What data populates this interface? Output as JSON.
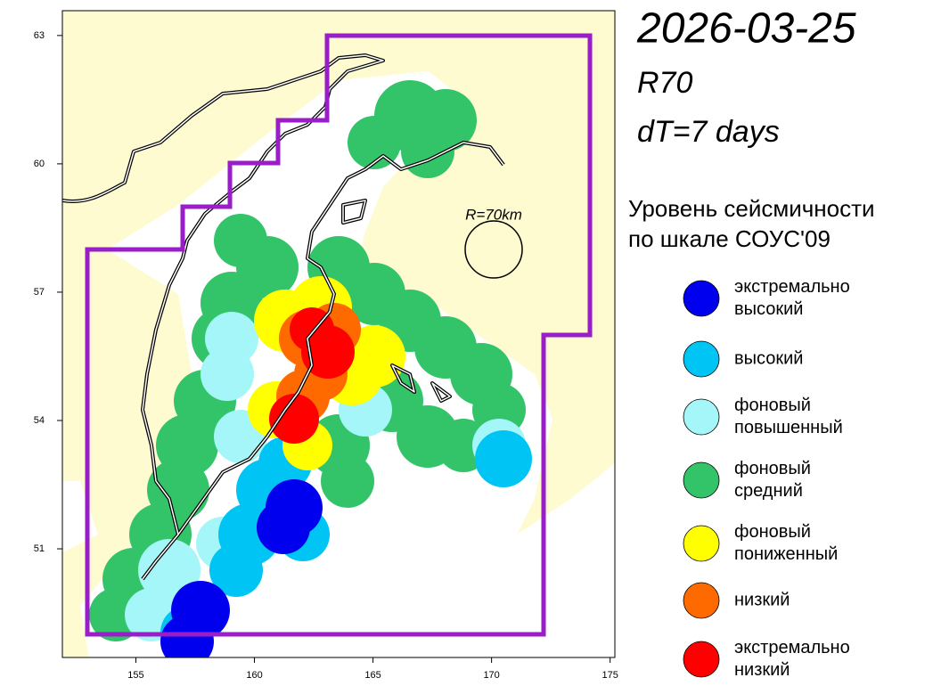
{
  "header": {
    "date": "2026-03-25",
    "radius": "R70",
    "window": "dT=7 days"
  },
  "map": {
    "xlim": [
      151.9,
      175.2
    ],
    "ylim": [
      48.46,
      63.58
    ],
    "xticks": [
      155,
      160,
      165,
      170,
      175
    ],
    "yticks": [
      51,
      54,
      57,
      60,
      63
    ],
    "circle_label": "R=70km"
  },
  "legend": {
    "title": [
      "Уровень сейсмичности",
      "по шкале СОУС'09"
    ],
    "items": [
      {
        "label": [
          "экстремально",
          "высокий"
        ],
        "color": "#0000ee"
      },
      {
        "label": [
          "высокий"
        ],
        "color": "#00c4f4"
      },
      {
        "label": [
          "фоновый",
          "повышенный"
        ],
        "color": "#a4f6f8"
      },
      {
        "label": [
          "фоновый",
          "средний"
        ],
        "color": "#33c46a"
      },
      {
        "label": [
          "фоновый",
          "пониженный"
        ],
        "color": "#ffff00"
      },
      {
        "label": [
          "низкий"
        ],
        "color": "#ff6a00"
      },
      {
        "label": [
          "экстремально",
          "низкий"
        ],
        "color": "#ff0000"
      }
    ]
  }
}
